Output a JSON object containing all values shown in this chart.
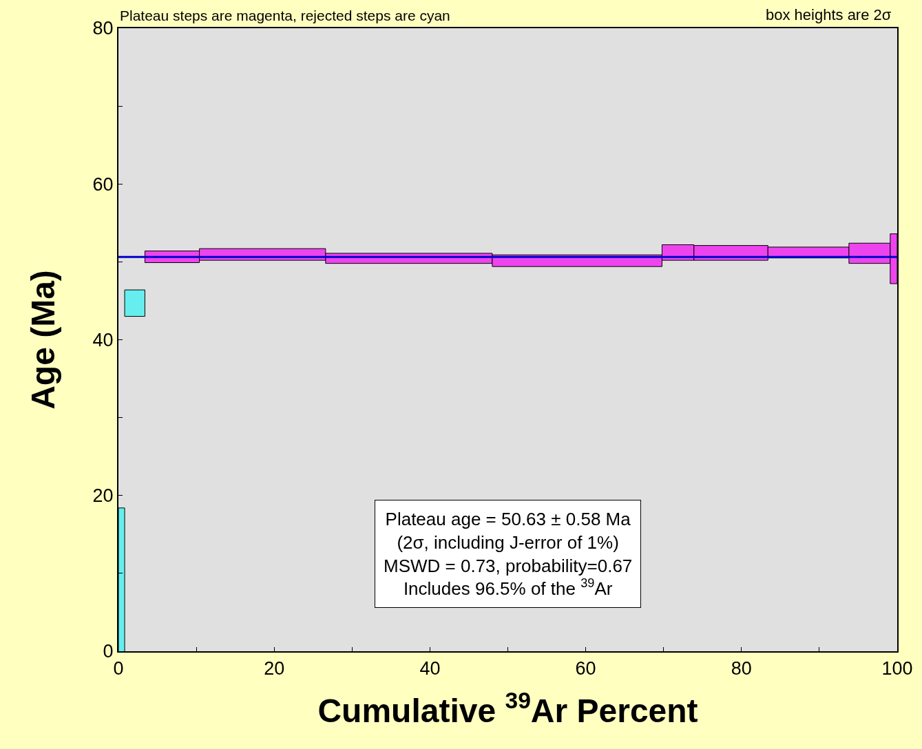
{
  "chart_data": {
    "type": "histogram",
    "xlabel": "Cumulative $^{39}$Ar Percent",
    "ylabel": "Age (Ma)",
    "bins": [
      0,
      0.8,
      3.4,
      10.4,
      26.6,
      48.0,
      69.8,
      73.9,
      83.4,
      93.8,
      99.1,
      100
    ],
    "base": [
      -12.5,
      43.0,
      49.9,
      50.2,
      49.8,
      49.4,
      50.2,
      50.2,
      50.5,
      49.8,
      47.2
    ],
    "values": [
      30.9,
      3.4,
      1.5,
      1.5,
      1.3,
      1.5,
      2.0,
      1.9,
      1.4,
      2.6,
      6.4
    ],
    "colors": [
      "#66eeee",
      "#66eeee",
      "#ee44ee",
      "#ee44ee",
      "#ee44ee",
      "#ee44ee",
      "#ee44ee",
      "#ee44ee",
      "#ee44ee",
      "#ee44ee",
      "#ee44ee"
    ],
    "xlim": [
      0,
      100
    ],
    "xticks": [
      0,
      {
        "value": 10,
        "label": null
      },
      20,
      {
        "value": 30,
        "label": null
      },
      40,
      {
        "value": 50,
        "label": null
      },
      60,
      {
        "value": 70,
        "label": null
      },
      80,
      {
        "value": 90,
        "label": null
      },
      100
    ],
    "ylim": [
      0,
      80
    ],
    "yticks": [
      0,
      {
        "value": 10,
        "label": null
      },
      20,
      {
        "value": 30,
        "label": null
      },
      40,
      {
        "value": 50,
        "label": null
      },
      60,
      {
        "value": 70,
        "label": null
      },
      80
    ],
    "ref_lines": [
      {
        "axis": "y",
        "value": 50.63,
        "color": "#0000cc"
      }
    ],
    "annotations": [
      "Plateau steps are magenta, rejected steps are cyan",
      "box heights are 2σ",
      "Plateau age = 50.63 ± 0.58 Ma\n(2σ, including J-error of 1%)\nMSWD = 0.73, probability=0.67\nIncludes 96.5% of the $^{39}$Ar"
    ],
    "grid": false
  }
}
